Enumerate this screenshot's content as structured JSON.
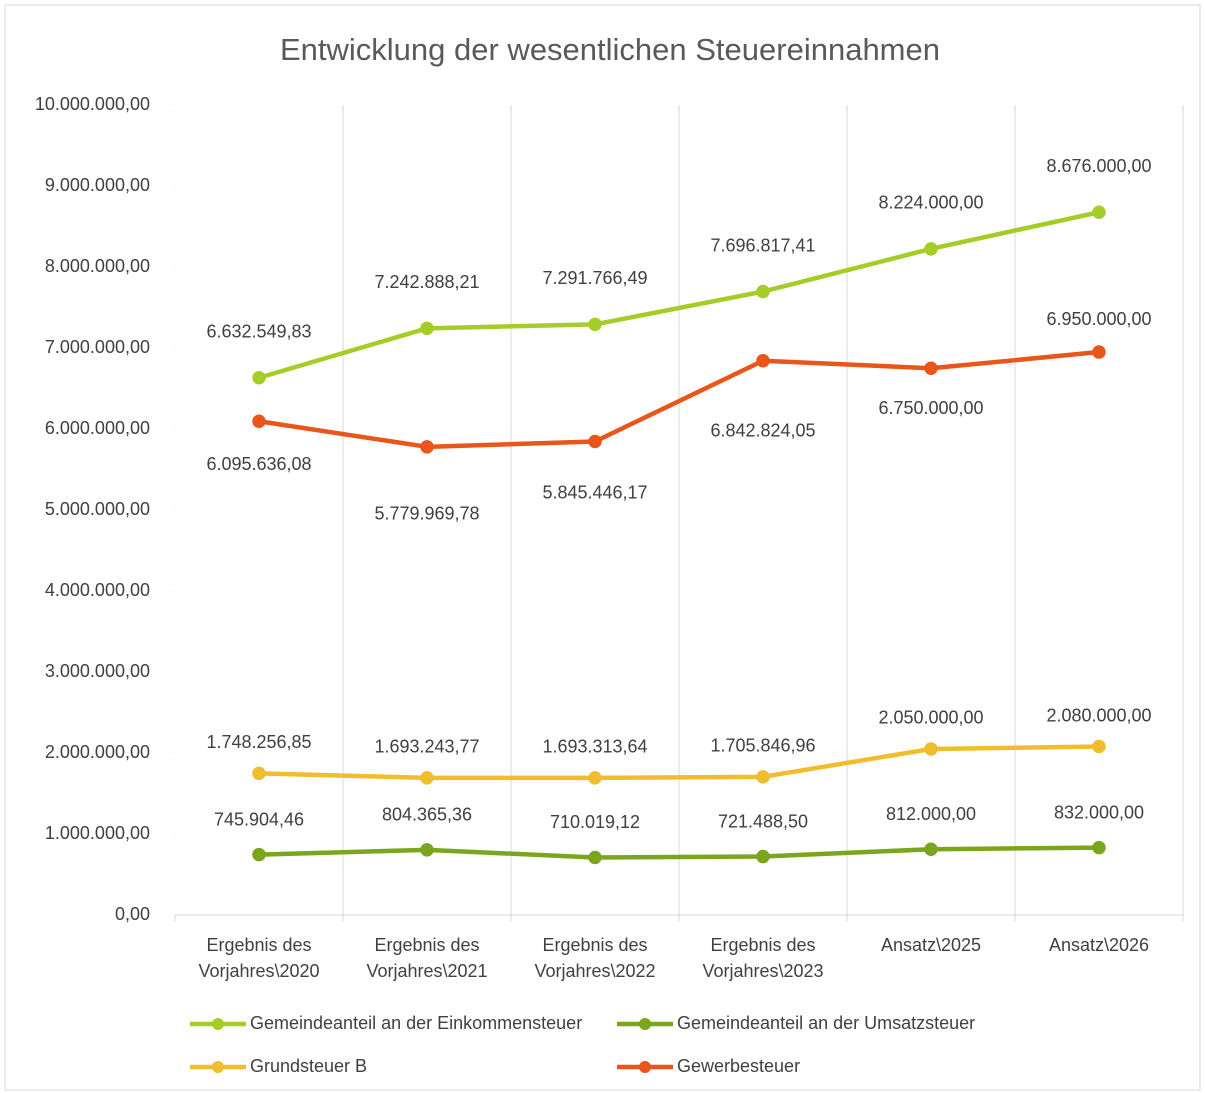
{
  "chart_data": {
    "type": "line",
    "title": "Entwicklung der wesentlichen Steuereinnahmen",
    "categories": [
      "Ergebnis des Vorjahres\\2020",
      "Ergebnis des Vorjahres\\2021",
      "Ergebnis des Vorjahres\\2022",
      "Ergebnis des Vorjahres\\2023",
      "Ansatz\\2025",
      "Ansatz\\2026"
    ],
    "series": [
      {
        "name": "Gemeindeanteil an der Einkommensteuer",
        "color": "#a5cd28",
        "values": [
          6632549.83,
          7242888.21,
          7291766.49,
          7696817.41,
          8224000,
          8676000
        ],
        "value_labels": [
          "6.632.549,83",
          "7.242.888,21",
          "7.291.766,49",
          "7.696.817,41",
          "8.224.000,00",
          "8.676.000,00"
        ]
      },
      {
        "name": "Gemeindeanteil an der Umsatzsteuer",
        "color": "#7aa51c",
        "values": [
          745904.46,
          804365.36,
          710019.12,
          721488.5,
          812000,
          832000
        ],
        "value_labels": [
          "745.904,46",
          "804.365,36",
          "710.019,12",
          "721.488,50",
          "812.000,00",
          "832.000,00"
        ]
      },
      {
        "name": "Grundsteuer B",
        "color": "#f0bd2c",
        "values": [
          1748256.85,
          1693243.77,
          1693313.64,
          1705846.96,
          2050000,
          2080000
        ],
        "value_labels": [
          "1.748.256,85",
          "1.693.243,77",
          "1.693.313,64",
          "1.705.846,96",
          "2.050.000,00",
          "2.080.000,00"
        ]
      },
      {
        "name": "Gewerbesteuer",
        "color": "#e8561a",
        "values": [
          6095636.08,
          5779969.78,
          5845446.17,
          6842824.05,
          6750000,
          6950000
        ],
        "value_labels": [
          "6.095.636,08",
          "5.779.969,78",
          "5.845.446,17",
          "6.842.824,05",
          "6.750.000,00",
          "6.950.000,00"
        ]
      }
    ],
    "ylim": [
      0,
      10000000
    ],
    "yticks": [
      {
        "value": 0,
        "label": "0,00"
      },
      {
        "value": 1000000,
        "label": "1.000.000,00"
      },
      {
        "value": 2000000,
        "label": "2.000.000,00"
      },
      {
        "value": 3000000,
        "label": "3.000.000,00"
      },
      {
        "value": 4000000,
        "label": "4.000.000,00"
      },
      {
        "value": 5000000,
        "label": "5.000.000,00"
      },
      {
        "value": 6000000,
        "label": "6.000.000,00"
      },
      {
        "value": 7000000,
        "label": "7.000.000,00"
      },
      {
        "value": 8000000,
        "label": "8.000.000,00"
      },
      {
        "value": 9000000,
        "label": "9.000.000,00"
      },
      {
        "value": 10000000,
        "label": "10.000.000,00"
      }
    ],
    "grid": "vertical",
    "legend": "bottom"
  }
}
